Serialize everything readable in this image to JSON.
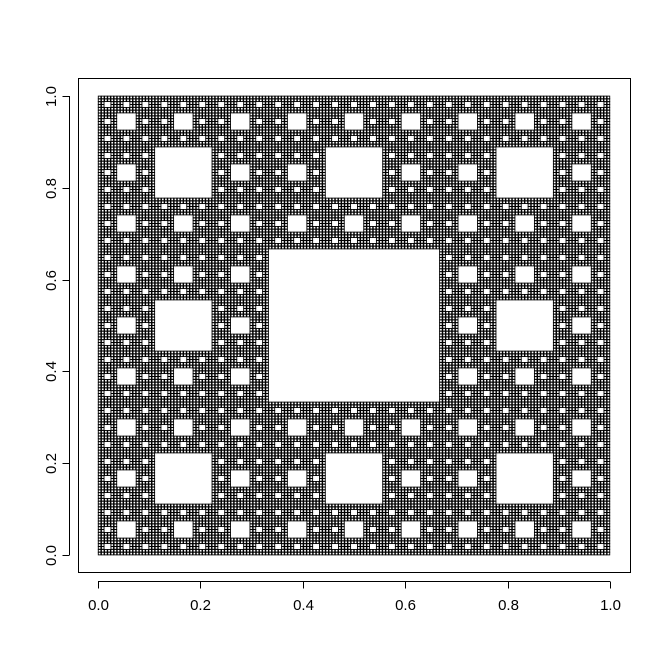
{
  "chart_data": {
    "type": "scatter",
    "title": "",
    "xlabel": "",
    "ylabel": "",
    "xlim": [
      0.0,
      1.0
    ],
    "ylim": [
      0.0,
      1.0
    ],
    "grid": false,
    "point_color": "#000000",
    "axis_color": "#000000",
    "background": "#ffffff",
    "pattern": "Sierpinski carpet (iterated 3x3 subdivision, center removed)",
    "x_ticks": [
      {
        "value": 0.0,
        "label": "0.0"
      },
      {
        "value": 0.2,
        "label": "0.2"
      },
      {
        "value": 0.4,
        "label": "0.4"
      },
      {
        "value": 0.6,
        "label": "0.6"
      },
      {
        "value": 0.8,
        "label": "0.8"
      },
      {
        "value": 1.0,
        "label": "1.0"
      }
    ],
    "y_ticks": [
      {
        "value": 0.0,
        "label": "0.0"
      },
      {
        "value": 0.2,
        "label": "0.2"
      },
      {
        "value": 0.4,
        "label": "0.4"
      },
      {
        "value": 0.6,
        "label": "0.6"
      },
      {
        "value": 0.8,
        "label": "0.8"
      },
      {
        "value": 1.0,
        "label": "1.0"
      }
    ]
  }
}
